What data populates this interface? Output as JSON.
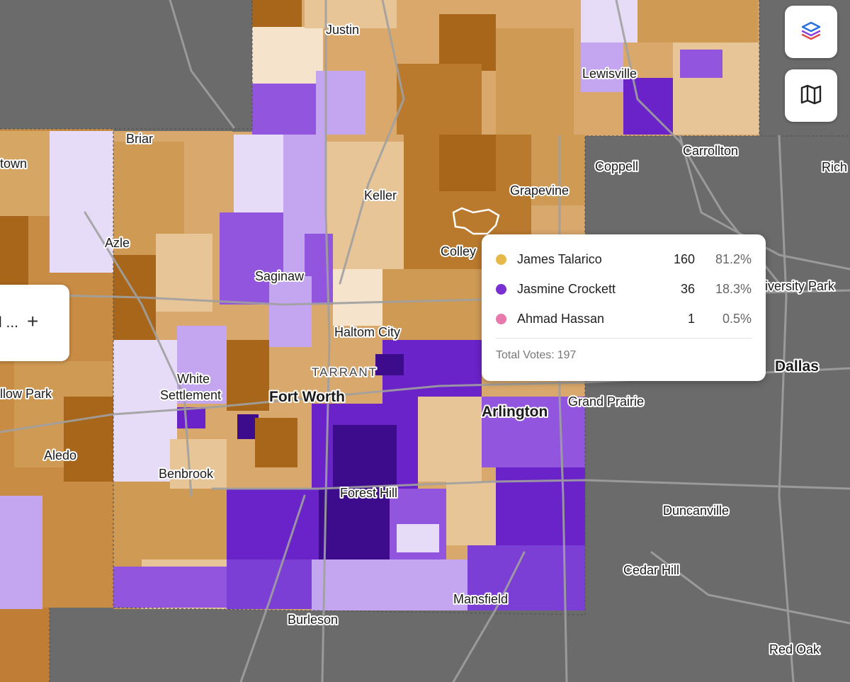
{
  "map": {
    "cities": [
      {
        "name": "Justin",
        "kind": "city"
      },
      {
        "name": "Lewisville",
        "kind": "city"
      },
      {
        "name": "Briar",
        "kind": "city"
      },
      {
        "name": "Carrollton",
        "kind": "city"
      },
      {
        "name": "Coppell",
        "kind": "city"
      },
      {
        "name": "Rich",
        "kind": "city"
      },
      {
        "name": "town",
        "kind": "city"
      },
      {
        "name": "Keller",
        "kind": "city"
      },
      {
        "name": "Grapevine",
        "kind": "city"
      },
      {
        "name": "Azle",
        "kind": "city"
      },
      {
        "name": "Colley",
        "kind": "city"
      },
      {
        "name": "Saginaw",
        "kind": "city"
      },
      {
        "name": "niversity Park",
        "kind": "city"
      },
      {
        "name": "Haltom City",
        "kind": "city"
      },
      {
        "name": "TARRANT",
        "kind": "county"
      },
      {
        "name": "Dallas",
        "kind": "major"
      },
      {
        "name": "White",
        "kind": "city"
      },
      {
        "name": "Settlement",
        "kind": "city"
      },
      {
        "name": "llow Park",
        "kind": "city"
      },
      {
        "name": "Fort Worth",
        "kind": "major"
      },
      {
        "name": "Arlington",
        "kind": "major"
      },
      {
        "name": "Grand Prairie",
        "kind": "city"
      },
      {
        "name": "Aledo",
        "kind": "city"
      },
      {
        "name": "Benbrook",
        "kind": "city"
      },
      {
        "name": "Forest Hill",
        "kind": "city"
      },
      {
        "name": "Duncanville",
        "kind": "city"
      },
      {
        "name": "Cedar Hill",
        "kind": "city"
      },
      {
        "name": "Mansfield",
        "kind": "city"
      },
      {
        "name": "Burleson",
        "kind": "city"
      },
      {
        "name": "Red Oak",
        "kind": "city"
      }
    ],
    "colors": {
      "talarico_strong": "#a8661a",
      "talarico_mid": "#cf9a54",
      "talarico_light": "#e8c597",
      "talarico_pale": "#f6e3cc",
      "crockett_pale": "#e6dcf8",
      "crockett_light": "#c3a6ef",
      "crockett_mid": "#9156dd",
      "crockett_strong": "#6a22c9",
      "crockett_darkest": "#3d0c8c",
      "basemap": "#6b6b6b",
      "roads": "#9a9a9a"
    }
  },
  "controls": {
    "layers_icon": "layers-icon",
    "basemap_icon": "map-icon",
    "left_panel_text": "l ...",
    "left_panel_plus": "+"
  },
  "popup": {
    "candidates": [
      {
        "name": "James Talarico",
        "votes": "160",
        "pct": "81.2%",
        "color": "#e6b84a"
      },
      {
        "name": "Jasmine Crockett",
        "votes": "36",
        "pct": "18.3%",
        "color": "#7a2fd1"
      },
      {
        "name": "Ahmad Hassan",
        "votes": "1",
        "pct": "0.5%",
        "color": "#e779ad"
      }
    ],
    "total_label": "Total Votes:",
    "total_value": "197"
  }
}
